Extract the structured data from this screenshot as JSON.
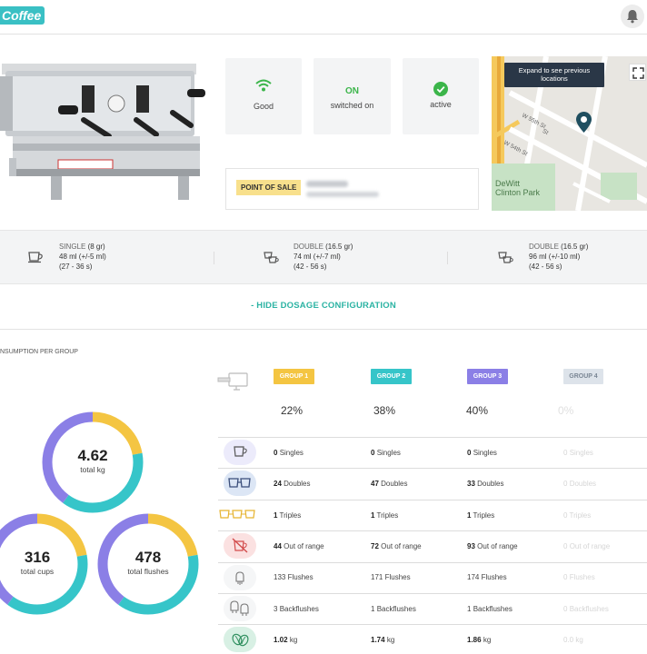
{
  "header": {
    "logo_text": "Coffee"
  },
  "status_cards": [
    {
      "icon": "wifi-icon",
      "line1": "",
      "line2": "Good"
    },
    {
      "icon": "",
      "line1": "ON",
      "line2": "switched on"
    },
    {
      "icon": "check-circle-icon",
      "line1": "",
      "line2": "active"
    }
  ],
  "point_of_sale": {
    "label": "POINT OF SALE"
  },
  "map": {
    "tooltip": "Expand to see previous locations",
    "streets": [
      "W 55th St",
      "W 54th St",
      "St"
    ],
    "park_label_1": "DeWitt",
    "park_label_2": "Clinton Park"
  },
  "dosages": [
    {
      "name": "SINGLE",
      "weight": "(8 gr)",
      "volume": "48 ml (+/-5 ml)",
      "time": "(27 - 36 s)"
    },
    {
      "name": "DOUBLE",
      "weight": "(16.5 gr)",
      "volume": "74 ml (+/-7 ml)",
      "time": "(42 - 56 s)"
    },
    {
      "name": "DOUBLE",
      "weight": "(16.5 gr)",
      "volume": "96 ml (+/-10 ml)",
      "time": "(42 - 56 s)"
    }
  ],
  "hide_link": "- HIDE DOSAGE CONFIGURATION",
  "section_title": "NSUMPTION PER GROUP",
  "totals": [
    {
      "value": "4.62",
      "label": "total kg"
    },
    {
      "value": "316",
      "label": "total cups"
    },
    {
      "value": "478",
      "label": "total flushes"
    }
  ],
  "groups": [
    {
      "name": "GROUP 1",
      "color": "#f4c542",
      "percent": "22%"
    },
    {
      "name": "GROUP 2",
      "color": "#36c5c9",
      "percent": "38%"
    },
    {
      "name": "GROUP 3",
      "color": "#8b7fe6",
      "percent": "40%"
    },
    {
      "name": "GROUP 4",
      "color": "#dde3ea",
      "percent": "0%"
    }
  ],
  "rows": [
    {
      "icon": "single-cup-icon",
      "label": "Singles",
      "values": [
        "0",
        "0",
        "0",
        "0"
      ]
    },
    {
      "icon": "double-cup-icon",
      "label": "Doubles",
      "values": [
        "24",
        "47",
        "33",
        "0"
      ]
    },
    {
      "icon": "triple-cup-icon",
      "label": "Triples",
      "values": [
        "1",
        "1",
        "1",
        "0"
      ]
    },
    {
      "icon": "out-of-range-icon",
      "label": "Out of range",
      "values": [
        "44",
        "72",
        "93",
        "0"
      ]
    },
    {
      "icon": "flush-icon",
      "label": "Flushes",
      "values": [
        "133",
        "171",
        "174",
        "0"
      ]
    },
    {
      "icon": "backflush-icon",
      "label": "Backflushes",
      "values": [
        "3",
        "1",
        "1",
        "0"
      ]
    },
    {
      "icon": "coffee-beans-icon",
      "label": "kg",
      "values": [
        "1.02",
        "1.74",
        "1.86",
        "0.0"
      ]
    }
  ],
  "colors": {
    "accent": "#2bb3a3",
    "group1": "#f4c542",
    "group2": "#36c5c9",
    "group3": "#8b7fe6",
    "group4": "#dde3ea"
  }
}
